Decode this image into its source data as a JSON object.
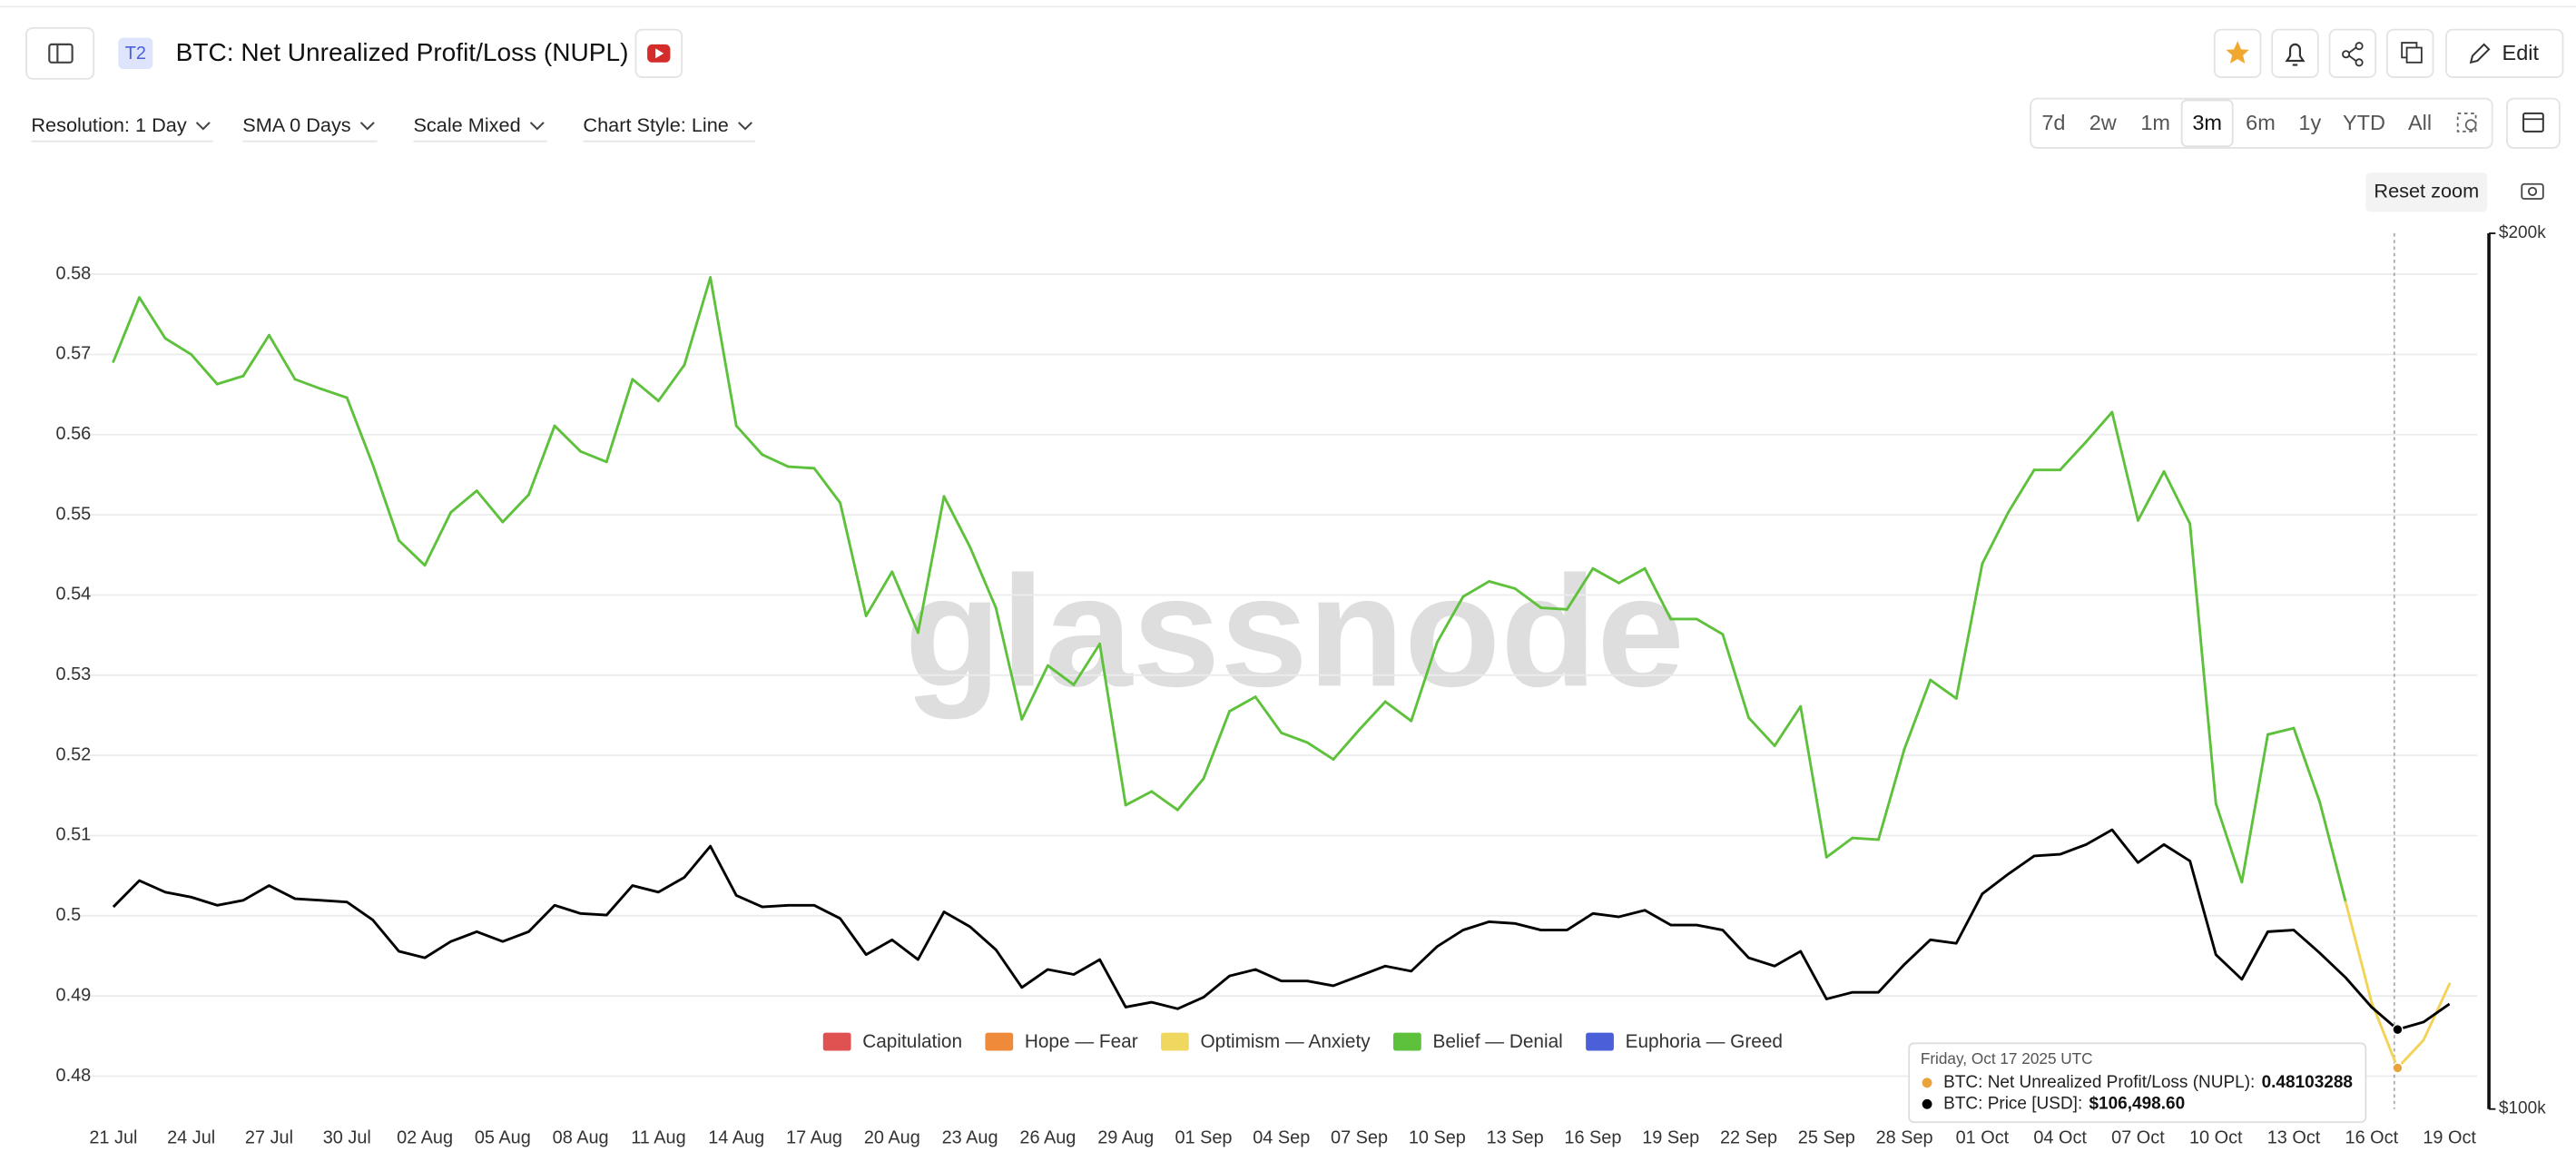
{
  "ui": {
    "badge": "T2",
    "controls": [
      "Resolution: 1 Day",
      "SMA 0 Days",
      "Scale Mixed",
      "Chart Style: Line"
    ],
    "ranges": [
      "7d",
      "2w",
      "1m",
      "3m",
      "6m",
      "1y",
      "YTD",
      "All"
    ],
    "edit": "Edit",
    "reset_zoom": "Reset zoom",
    "watermark": "glassnode"
  },
  "chart_data": {
    "type": "line",
    "title": "BTC: Net Unrealized Profit/Loss (NUPL)",
    "categories": [
      "21 Jul",
      null,
      null,
      "24 Jul",
      null,
      null,
      "27 Jul",
      null,
      null,
      "30 Jul",
      null,
      null,
      "02 Aug",
      null,
      null,
      "05 Aug",
      null,
      null,
      "08 Aug",
      null,
      null,
      "11 Aug",
      null,
      null,
      "14 Aug",
      null,
      null,
      "17 Aug",
      null,
      null,
      "20 Aug",
      null,
      null,
      "23 Aug",
      null,
      null,
      "26 Aug",
      null,
      null,
      "29 Aug",
      null,
      null,
      "01 Sep",
      null,
      null,
      "04 Sep",
      null,
      null,
      "07 Sep",
      null,
      null,
      "10 Sep",
      null,
      null,
      "13 Sep",
      null,
      null,
      "16 Sep",
      null,
      null,
      "19 Sep",
      null,
      null,
      "22 Sep",
      null,
      null,
      "25 Sep",
      null,
      null,
      "28 Sep",
      null,
      null,
      "01 Oct",
      null,
      null,
      "04 Oct",
      null,
      null,
      "07 Oct",
      null,
      null,
      "10 Oct",
      null,
      null,
      "13 Oct",
      null,
      null,
      "16 Oct",
      null,
      null,
      "19 Oct"
    ],
    "series": [
      {
        "color": "#5ec13b",
        "colors": [
          "#5ec13b",
          "#5ec13b",
          "#5ec13b",
          "#5ec13b",
          "#5ec13b",
          "#5ec13b",
          "#5ec13b",
          "#5ec13b",
          "#5ec13b",
          "#5ec13b",
          "#5ec13b",
          "#5ec13b",
          "#5ec13b",
          "#5ec13b",
          "#5ec13b",
          "#5ec13b",
          "#5ec13b",
          "#5ec13b",
          "#5ec13b",
          "#5ec13b",
          "#5ec13b",
          "#5ec13b",
          "#5ec13b",
          "#5ec13b",
          "#5ec13b",
          "#5ec13b",
          "#5ec13b",
          "#5ec13b",
          "#5ec13b",
          "#5ec13b",
          "#5ec13b",
          "#5ec13b",
          "#5ec13b",
          "#5ec13b",
          "#5ec13b",
          "#5ec13b",
          "#5ec13b",
          "#5ec13b",
          "#5ec13b",
          "#5ec13b",
          "#5ec13b",
          "#5ec13b",
          "#5ec13b",
          "#5ec13b",
          "#5ec13b",
          "#5ec13b",
          "#5ec13b",
          "#5ec13b",
          "#5ec13b",
          "#5ec13b",
          "#5ec13b",
          "#5ec13b",
          "#5ec13b",
          "#5ec13b",
          "#5ec13b",
          "#5ec13b",
          "#5ec13b",
          "#5ec13b",
          "#5ec13b",
          "#5ec13b",
          "#5ec13b",
          "#5ec13b",
          "#5ec13b",
          "#5ec13b",
          "#5ec13b",
          "#5ec13b",
          "#5ec13b",
          "#5ec13b",
          "#5ec13b",
          "#5ec13b",
          "#5ec13b",
          "#5ec13b",
          "#5ec13b",
          "#5ec13b",
          "#5ec13b",
          "#5ec13b",
          "#5ec13b",
          "#5ec13b",
          "#5ec13b",
          "#5ec13b",
          "#5ec13b",
          "#5ec13b",
          "#5ec13b",
          "#5ec13b",
          "#5ec13b",
          "#5ec13b",
          "#5ec13b",
          "#f2d356",
          "#f2d356",
          "#f2d356",
          "#f2d356"
        ],
        "values": [
          0.5691,
          0.5771,
          0.572,
          0.57,
          0.5663,
          0.5673,
          0.5724,
          0.5669,
          0.5657,
          0.5646,
          0.5562,
          0.5468,
          0.5437,
          0.5503,
          0.553,
          0.5491,
          0.5525,
          0.5611,
          0.5579,
          0.5566,
          0.5669,
          0.5642,
          0.5687,
          0.5796,
          0.5611,
          0.5575,
          0.556,
          0.5558,
          0.5515,
          0.5374,
          0.5429,
          0.5353,
          0.5523,
          0.546,
          0.5384,
          0.5245,
          0.5312,
          0.5288,
          0.5339,
          0.5138,
          0.5155,
          0.5132,
          0.5171,
          0.5255,
          0.5273,
          0.5228,
          0.5216,
          0.5195,
          0.5232,
          0.5267,
          0.5243,
          0.5341,
          0.5398,
          0.5417,
          0.5408,
          0.5384,
          0.5382,
          0.5433,
          0.5415,
          0.5433,
          0.537,
          0.537,
          0.5351,
          0.5247,
          0.5212,
          0.5261,
          0.5073,
          0.5097,
          0.5095,
          0.5208,
          0.5294,
          0.5271,
          0.5439,
          0.5503,
          0.5556,
          0.5556,
          0.5591,
          0.5628,
          0.5493,
          0.5554,
          0.5489,
          0.514,
          0.5042,
          0.5226,
          0.5234,
          0.5142,
          0.5017,
          0.4892,
          0.48103288,
          0.4845,
          0.4915
        ]
      },
      {
        "color": "#000000",
        "axis": "y2",
        "values": [
          117350,
          119820,
          118730,
          118260,
          117500,
          117960,
          119350,
          118110,
          117960,
          117800,
          116130,
          113300,
          112720,
          114180,
          115070,
          114180,
          115070,
          117500,
          116740,
          116590,
          119350,
          118730,
          120130,
          123130,
          118420,
          117350,
          117500,
          117500,
          116280,
          113000,
          114330,
          112560,
          116890,
          115530,
          113440,
          110100,
          111680,
          111240,
          112560,
          108400,
          108820,
          108260,
          109250,
          111110,
          111680,
          110670,
          110670,
          110250,
          111110,
          111980,
          111530,
          113730,
          115220,
          115980,
          115820,
          115220,
          115220,
          116740,
          116430,
          117040,
          115680,
          115680,
          115220,
          112720,
          111980,
          113300,
          109100,
          109680,
          109680,
          112130,
          114330,
          114020,
          118570,
          120440,
          122180,
          122340,
          123290,
          124740,
          121540,
          123290,
          121700,
          113000,
          110810,
          115070,
          115220,
          113150,
          110960,
          108400,
          106498.6,
          107130,
          108680
        ]
      }
    ],
    "legend": [
      {
        "name": "Capitulation",
        "color": "#e05252"
      },
      {
        "name": "Hope — Fear",
        "color": "#ee8a3a"
      },
      {
        "name": "Optimism — Anxiety",
        "color": "#f0d860"
      },
      {
        "name": "Belief — Denial",
        "color": "#5ec13b"
      },
      {
        "name": "Euphoria — Greed",
        "color": "#4a5fd8"
      }
    ],
    "ylim": [
      0.4759,
      0.5851
    ],
    "yticks": [
      0.48,
      0.49,
      0.5,
      0.51,
      0.52,
      0.53,
      0.54,
      0.55,
      0.56,
      0.57,
      0.58
    ],
    "y2lim": [
      100000,
      200000
    ],
    "y2scale": "log",
    "y2ticks": [
      {
        "value": 100000,
        "label": "$100k"
      },
      {
        "value": 200000,
        "label": "$200k"
      }
    ],
    "grid": true,
    "tooltip": {
      "title": "Friday, Oct 17 2025 UTC",
      "rows": [
        {
          "label": "BTC: Net Unrealized Profit/Loss (NUPL):",
          "color": "#e8a33a"
        },
        {
          "label": "BTC: Price [USD]:",
          "value_label": "$106,498.60",
          "color": "#000000"
        }
      ]
    }
  }
}
